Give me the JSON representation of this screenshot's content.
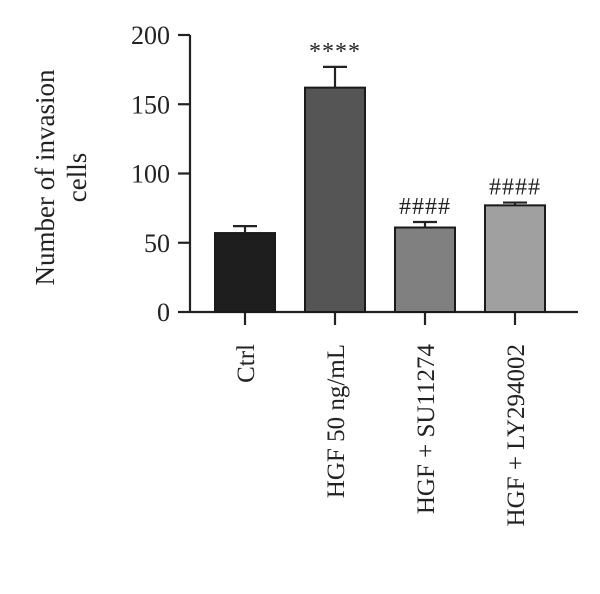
{
  "chart_data": {
    "type": "bar",
    "title": "",
    "xlabel": "",
    "ylabel": [
      "Number of invasion",
      "cells"
    ],
    "ylim": [
      0,
      200
    ],
    "yticks": [
      0,
      50,
      100,
      150,
      200
    ],
    "categories": [
      "Ctrl",
      "HGF 50 ng/mL",
      "HGF + SU11274",
      "HGF + LY294002"
    ],
    "values": [
      57,
      162,
      61,
      77
    ],
    "errors": [
      5,
      15,
      4,
      2
    ],
    "significance": [
      "",
      "****",
      "####",
      "####"
    ],
    "bar_colors": [
      "#1e1e1e",
      "#555555",
      "#808080",
      "#a0a0a0"
    ],
    "grid": false
  }
}
